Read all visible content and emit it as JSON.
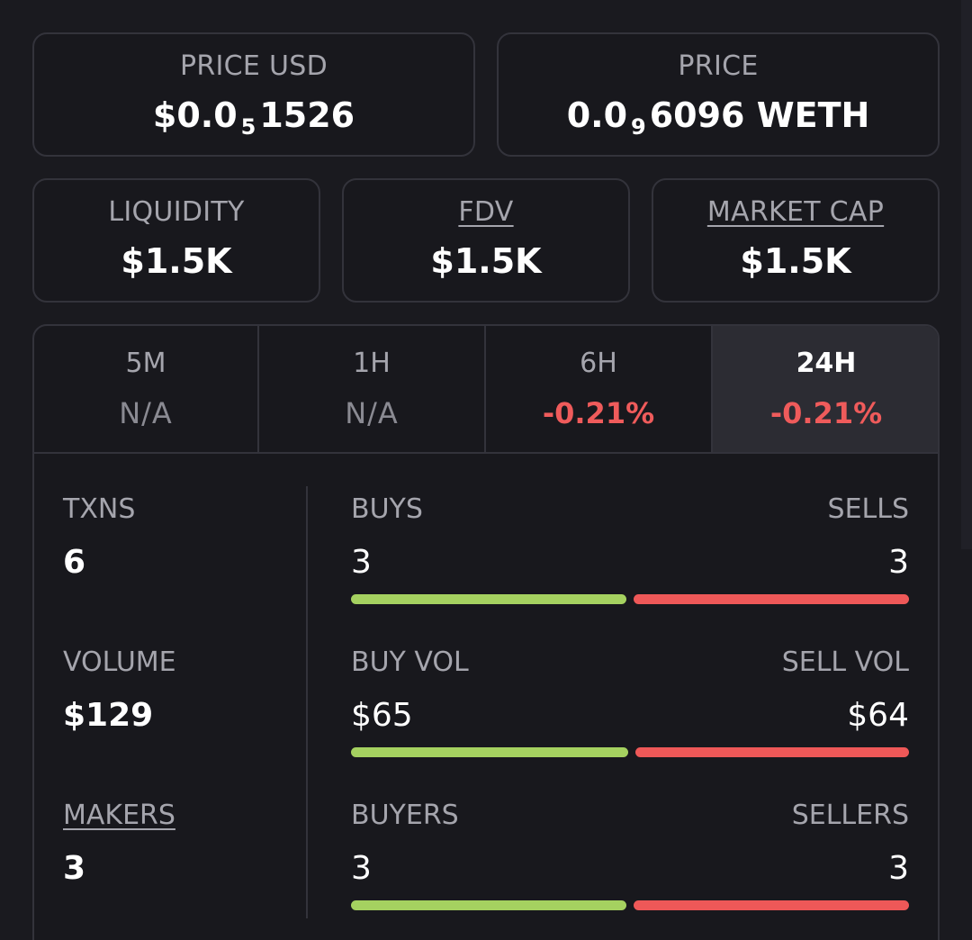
{
  "price_usd": {
    "label": "PRICE USD",
    "prefix": "$0.0",
    "zeros_sub": "5",
    "digits": "1526"
  },
  "price_native": {
    "label": "PRICE",
    "prefix": "0.0",
    "zeros_sub": "9",
    "digits": "6096 WETH"
  },
  "liquidity": {
    "label": "LIQUIDITY",
    "value": "$1.5K"
  },
  "fdv": {
    "label": "FDV",
    "value": "$1.5K"
  },
  "market_cap": {
    "label": "MARKET CAP",
    "value": "$1.5K"
  },
  "tabs": [
    {
      "label": "5M",
      "value": "N/A"
    },
    {
      "label": "1H",
      "value": "N/A"
    },
    {
      "label": "6H",
      "value": "-0.21%"
    },
    {
      "label": "24H",
      "value": "-0.21%"
    }
  ],
  "active_tab": "24H",
  "stats": {
    "txns": {
      "label": "TXNS",
      "value": "6"
    },
    "volume": {
      "label": "VOLUME",
      "value": "$129"
    },
    "makers": {
      "label": "MAKERS",
      "value": "3"
    },
    "buys": {
      "left_label": "BUYS",
      "left_value": "3",
      "right_label": "SELLS",
      "right_value": "3",
      "buy_share": 0.5
    },
    "buy_vol": {
      "left_label": "BUY VOL",
      "left_value": "$65",
      "right_label": "SELL VOL",
      "right_value": "$64",
      "buy_share": 0.504
    },
    "buyers": {
      "left_label": "BUYERS",
      "left_value": "3",
      "right_label": "SELLERS",
      "right_value": "3",
      "buy_share": 0.5
    }
  },
  "colors": {
    "buy": "#a5d160",
    "sell": "#ee5858",
    "negative": "#ef5b5b"
  }
}
